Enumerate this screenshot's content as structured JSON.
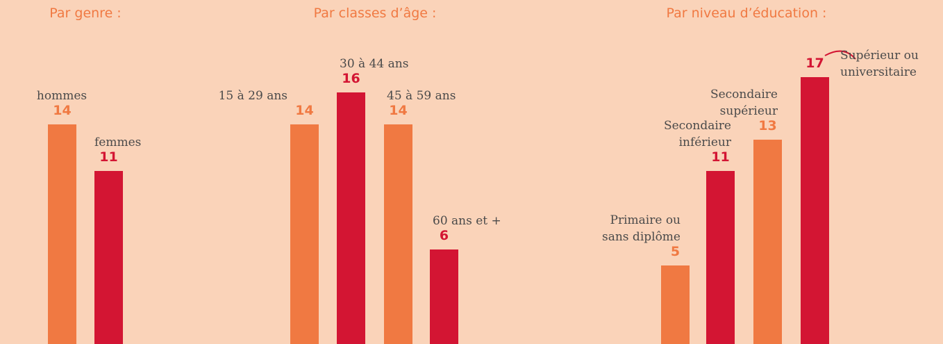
{
  "chart_data": [
    {
      "type": "bar",
      "title": "Par genre :",
      "categories": [
        "hommes",
        "femmes"
      ],
      "values": [
        14,
        11
      ],
      "colors": [
        "#f07942",
        "#d31533"
      ]
    },
    {
      "type": "bar",
      "title": "Par classes d’âge :",
      "categories": [
        "15 à 29 ans",
        "30 à 44 ans",
        "45 à 59 ans",
        "60 ans et +"
      ],
      "values": [
        14,
        16,
        14,
        6
      ],
      "colors": [
        "#f07942",
        "#d31533",
        "#f07942",
        "#d31533"
      ]
    },
    {
      "type": "bar",
      "title": "Par niveau d’éducation :",
      "categories": [
        "Primaire ou\nsans diplôme",
        "Secondaire\ninférieur",
        "Secondaire\nsupérieur",
        "Supérieur ou\nuniversitaire"
      ],
      "values": [
        5,
        11,
        13,
        17
      ],
      "colors": [
        "#f07942",
        "#d31533",
        "#f07942",
        "#d31533"
      ]
    }
  ]
}
